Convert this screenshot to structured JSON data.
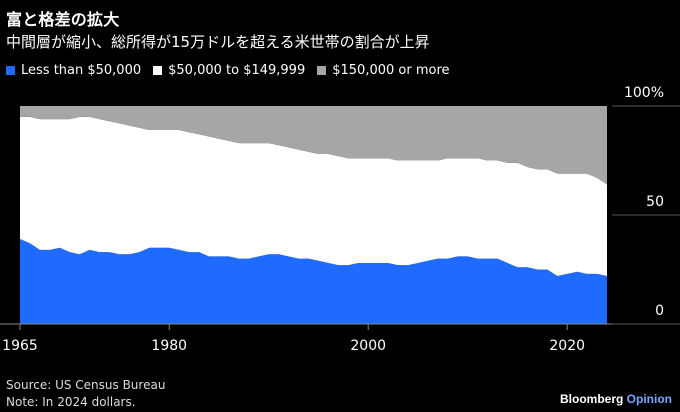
{
  "header": {
    "title": "富と格差の拡大",
    "subtitle": "中間層が縮小、総所得が15万ドルを超える米世帯の割合が上昇"
  },
  "colors": {
    "background": "#000000",
    "low": "#1f6bff",
    "middle": "#ffffff",
    "high": "#a6a6a6"
  },
  "legend": [
    {
      "label": "Less than $50,000",
      "color": "#1f6bff"
    },
    {
      "label": "$50,000 to $149,999",
      "color": "#ffffff"
    },
    {
      "label": "$150,000 or more",
      "color": "#a6a6a6"
    }
  ],
  "footer": {
    "source": "Source: US Census Bureau",
    "note": "Note: In 2024 dollars.",
    "brand_bold": "Bloomberg",
    "brand_accent": "Opinion"
  },
  "chart_data": {
    "type": "area",
    "stacked": true,
    "title": "富と格差の拡大",
    "x_ticks": [
      "1965",
      "1980",
      "2000",
      "2020"
    ],
    "y_ticks": [
      "100%",
      "50",
      "0"
    ],
    "xlim": [
      1965,
      2024
    ],
    "ylim": [
      0,
      100
    ],
    "x": [
      1965,
      1966,
      1967,
      1968,
      1969,
      1970,
      1971,
      1972,
      1973,
      1974,
      1975,
      1976,
      1977,
      1978,
      1979,
      1980,
      1981,
      1982,
      1983,
      1984,
      1985,
      1986,
      1987,
      1988,
      1989,
      1990,
      1991,
      1992,
      1993,
      1994,
      1995,
      1996,
      1997,
      1998,
      1999,
      2000,
      2001,
      2002,
      2003,
      2004,
      2005,
      2006,
      2007,
      2008,
      2009,
      2010,
      2011,
      2012,
      2013,
      2014,
      2015,
      2016,
      2017,
      2018,
      2019,
      2020,
      2021,
      2022,
      2023,
      2024
    ],
    "series": [
      {
        "name": "Less than $50,000",
        "values": [
          39,
          37,
          34,
          34,
          35,
          33,
          32,
          34,
          33,
          33,
          32,
          32,
          33,
          35,
          35,
          35,
          34,
          33,
          33,
          31,
          31,
          31,
          30,
          30,
          31,
          32,
          32,
          31,
          30,
          30,
          29,
          28,
          27,
          27,
          28,
          28,
          28,
          28,
          27,
          27,
          28,
          29,
          30,
          30,
          31,
          31,
          30,
          30,
          30,
          28,
          26,
          26,
          25,
          25,
          22,
          23,
          24,
          23,
          23,
          22
        ]
      },
      {
        "name": "$50,000 to $149,999",
        "values": [
          56,
          58,
          60,
          60,
          59,
          61,
          63,
          61,
          61,
          60,
          60,
          59,
          57,
          54,
          54,
          54,
          55,
          55,
          54,
          55,
          54,
          53,
          53,
          53,
          52,
          51,
          50,
          50,
          50,
          49,
          49,
          50,
          50,
          49,
          48,
          48,
          48,
          48,
          48,
          48,
          47,
          46,
          45,
          46,
          45,
          45,
          46,
          45,
          45,
          46,
          48,
          46,
          46,
          46,
          47,
          46,
          45,
          46,
          44,
          42
        ]
      },
      {
        "name": "$150,000 or more",
        "values": [
          5,
          5,
          6,
          6,
          6,
          6,
          5,
          5,
          6,
          7,
          8,
          9,
          10,
          11,
          11,
          11,
          11,
          12,
          13,
          14,
          15,
          16,
          17,
          17,
          17,
          17,
          18,
          19,
          20,
          21,
          22,
          22,
          23,
          24,
          24,
          24,
          24,
          24,
          25,
          25,
          25,
          25,
          25,
          24,
          24,
          24,
          24,
          25,
          25,
          26,
          26,
          28,
          29,
          29,
          31,
          31,
          31,
          31,
          33,
          36
        ]
      }
    ],
    "grid": false
  }
}
